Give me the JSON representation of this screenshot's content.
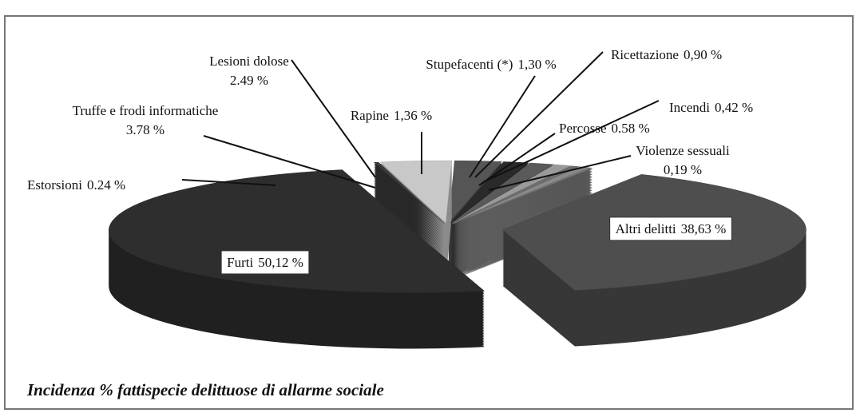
{
  "chart_data": {
    "type": "pie",
    "title": "Incidenza % fattispecie delittuose  di allarme sociale",
    "categories": [
      "Stupefacenti (*)",
      "Ricettazione",
      "Incendi",
      "Percosse",
      "Violenze sessuali",
      "Altri delitti",
      "Furti",
      "Estorsioni",
      "Truffe e frodi informatiche",
      "Lesioni dolose",
      "Rapine"
    ],
    "values": [
      1.3,
      0.9,
      0.42,
      0.58,
      0.19,
      38.63,
      50.12,
      0.24,
      3.78,
      2.49,
      1.36
    ],
    "value_labels": [
      "1,30 %",
      "0,90 %",
      "0,42 %",
      "0.58 %",
      "0,19 %",
      "38,63 %",
      "50,12 %",
      "0.24 %",
      "3.78 %",
      "2.49 %",
      "1,36 %"
    ],
    "colors": [
      "#5a5a5a",
      "#9a9a9a",
      "#6e6e6e",
      "#8a8a8a",
      "#7a7a7a",
      "#4e4e4e",
      "#2e2e2e",
      "#3a3a3a",
      "#c8c8c8",
      "#555555",
      "#2a2a2a"
    ]
  }
}
